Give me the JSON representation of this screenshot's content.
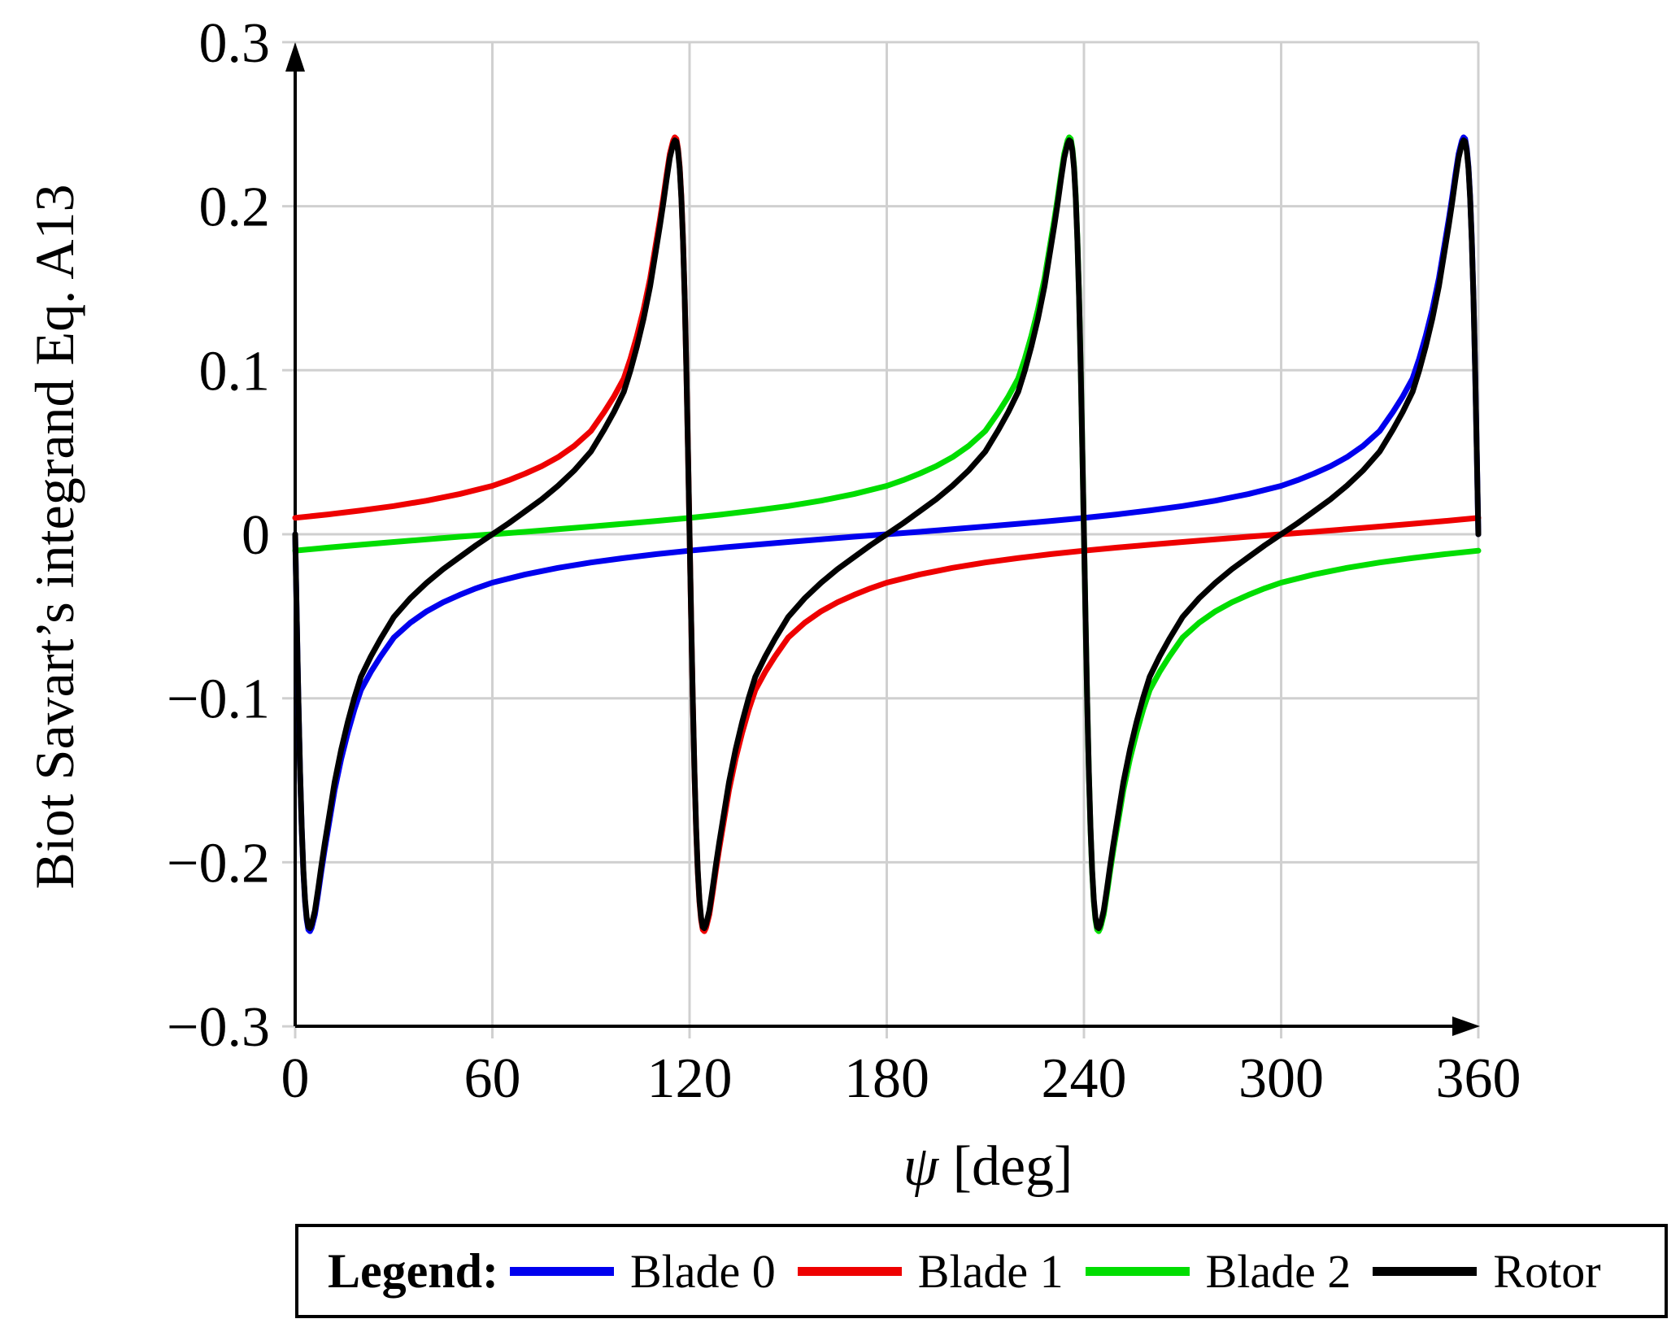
{
  "legend": {
    "title": "Legend:",
    "items": [
      {
        "label": "Blade 0",
        "color": "#0000ee"
      },
      {
        "label": "Blade 1",
        "color": "#ee0000"
      },
      {
        "label": "Blade 2",
        "color": "#00dd00"
      },
      {
        "label": "Rotor",
        "color": "#000000"
      }
    ]
  },
  "chart_data": {
    "type": "line",
    "title": "",
    "xlabel": "ψ [deg]",
    "xlabel_symbol": "ψ",
    "xlabel_unit": " [deg]",
    "ylabel": "Biot Savart’s integrand Eq. A13",
    "xlim": [
      0,
      360
    ],
    "ylim": [
      -0.3,
      0.3
    ],
    "x_ticks": [
      0,
      60,
      120,
      180,
      240,
      300,
      360
    ],
    "y_ticks": [
      -0.3,
      -0.2,
      -0.1,
      0,
      0.1,
      0.2,
      0.3
    ],
    "grid": true,
    "grid_color": "#d0d0d0",
    "legend_position": "below",
    "peak_value": 0.242,
    "blade_singularity_positions_deg": [
      0,
      120,
      240
    ],
    "blade_profile_note": "Canonical single-blade curve g(delta): value vs angular distance delta (deg) from that blade's singularity; each blade is this profile shifted by offset_deg; Rotor is the sum of the three blades.",
    "blade_profile": [
      [
        0,
        0
      ],
      [
        0.5,
        -0.053
      ],
      [
        1,
        -0.103
      ],
      [
        1.5,
        -0.146
      ],
      [
        2,
        -0.18
      ],
      [
        2.5,
        -0.206
      ],
      [
        3,
        -0.224
      ],
      [
        3.5,
        -0.235
      ],
      [
        4,
        -0.241
      ],
      [
        4.5,
        -0.242
      ],
      [
        5,
        -0.24
      ],
      [
        6,
        -0.232
      ],
      [
        7,
        -0.219
      ],
      [
        8,
        -0.205
      ],
      [
        9,
        -0.192
      ],
      [
        10,
        -0.18
      ],
      [
        12,
        -0.156
      ],
      [
        14,
        -0.137
      ],
      [
        16,
        -0.121
      ],
      [
        18,
        -0.107
      ],
      [
        20,
        -0.095
      ],
      [
        23,
        -0.084
      ],
      [
        26,
        -0.0745
      ],
      [
        30,
        -0.063
      ],
      [
        35,
        -0.054
      ],
      [
        40,
        -0.047
      ],
      [
        45,
        -0.0415
      ],
      [
        50,
        -0.037
      ],
      [
        55,
        -0.033
      ],
      [
        60,
        -0.0295
      ],
      [
        70,
        -0.0245
      ],
      [
        80,
        -0.0205
      ],
      [
        90,
        -0.0172
      ],
      [
        100,
        -0.0145
      ],
      [
        110,
        -0.0121
      ],
      [
        120,
        -0.01
      ],
      [
        130,
        -0.0081
      ],
      [
        140,
        -0.0064
      ],
      [
        150,
        -0.0047
      ],
      [
        160,
        -0.0031
      ],
      [
        170,
        -0.0015
      ],
      [
        180,
        0
      ],
      [
        190,
        0.0015
      ],
      [
        200,
        0.0031
      ],
      [
        210,
        0.0047
      ],
      [
        220,
        0.0064
      ],
      [
        230,
        0.0081
      ],
      [
        240,
        0.01
      ],
      [
        250,
        0.0121
      ],
      [
        260,
        0.0145
      ],
      [
        270,
        0.0172
      ],
      [
        280,
        0.0205
      ],
      [
        290,
        0.0245
      ],
      [
        300,
        0.0295
      ],
      [
        305,
        0.033
      ],
      [
        310,
        0.037
      ],
      [
        315,
        0.0415
      ],
      [
        320,
        0.047
      ],
      [
        325,
        0.054
      ],
      [
        330,
        0.063
      ],
      [
        334,
        0.0745
      ],
      [
        337,
        0.084
      ],
      [
        340,
        0.095
      ],
      [
        342,
        0.107
      ],
      [
        344,
        0.121
      ],
      [
        346,
        0.137
      ],
      [
        348,
        0.156
      ],
      [
        350,
        0.18
      ],
      [
        351,
        0.192
      ],
      [
        352,
        0.205
      ],
      [
        353,
        0.219
      ],
      [
        354,
        0.232
      ],
      [
        355,
        0.24
      ],
      [
        355.5,
        0.242
      ],
      [
        356,
        0.241
      ],
      [
        356.5,
        0.235
      ],
      [
        357,
        0.224
      ],
      [
        357.5,
        0.206
      ],
      [
        358,
        0.18
      ],
      [
        358.5,
        0.146
      ],
      [
        359,
        0.103
      ],
      [
        359.5,
        0.053
      ],
      [
        360,
        0
      ]
    ],
    "series": [
      {
        "name": "Blade 0",
        "color": "#0000ee",
        "kind": "blade",
        "offset_deg": 0
      },
      {
        "name": "Blade 1",
        "color": "#ee0000",
        "kind": "blade",
        "offset_deg": 120
      },
      {
        "name": "Blade 2",
        "color": "#00dd00",
        "kind": "blade",
        "offset_deg": 240
      },
      {
        "name": "Rotor",
        "color": "#000000",
        "kind": "sum"
      }
    ]
  }
}
